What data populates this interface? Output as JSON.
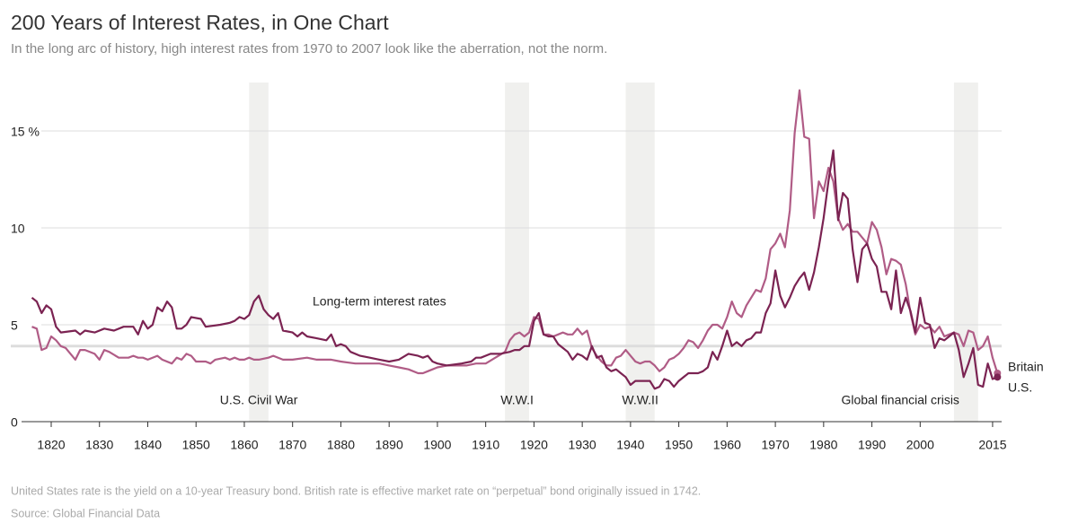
{
  "chart_data": {
    "type": "line",
    "title": "200 Years of Interest Rates, in One Chart",
    "subtitle": "In the long arc of history, high interest rates from 1970 to 2007 look like the aberration, not the norm.",
    "annotation": "Long-term interest rates",
    "notes": [
      "United States rate is the yield on a 10-year Treasury bond. British rate is effective market rate on “perpetual” bond originally issued in 1742.",
      "Source: Global Financial Data"
    ],
    "shaded_periods": [
      {
        "label": "U.S. Civil War",
        "start": 1861,
        "end": 1865
      },
      {
        "label": "W.W.I",
        "start": 1914,
        "end": 1919
      },
      {
        "label": "W.W.II",
        "start": 1939,
        "end": 1945
      },
      {
        "label": "Global financial crisis",
        "start": 2007,
        "end": 2012
      }
    ],
    "reference_line": 3.9,
    "xlim": [
      1812,
      2018
    ],
    "ylim": [
      0,
      17.5
    ],
    "xticks": [
      1820,
      1830,
      1840,
      1850,
      1860,
      1870,
      1880,
      1890,
      1900,
      1910,
      1920,
      1930,
      1940,
      1950,
      1960,
      1970,
      1980,
      1990,
      2000,
      2015
    ],
    "yticks": [
      0,
      5,
      10,
      {
        "value": 15,
        "label": "15 %"
      }
    ],
    "grid": true,
    "series": [
      {
        "name": "Britain",
        "color": "#b05c86",
        "x": [
          1816,
          1817,
          1818,
          1819,
          1820,
          1821,
          1822,
          1823,
          1825,
          1826,
          1827,
          1829,
          1830,
          1831,
          1832,
          1834,
          1836,
          1837,
          1838,
          1839,
          1840,
          1842,
          1843,
          1845,
          1846,
          1847,
          1848,
          1849,
          1850,
          1852,
          1853,
          1854,
          1856,
          1857,
          1858,
          1859,
          1860,
          1861,
          1862,
          1863,
          1865,
          1866,
          1868,
          1870,
          1873,
          1875,
          1878,
          1880,
          1883,
          1886,
          1888,
          1890,
          1892,
          1894,
          1896,
          1897,
          1898,
          1899,
          1900,
          1902,
          1904,
          1906,
          1908,
          1910,
          1912,
          1914,
          1915,
          1916,
          1917,
          1918,
          1919,
          1920,
          1921,
          1922,
          1923,
          1924,
          1925,
          1926,
          1927,
          1928,
          1929,
          1930,
          1931,
          1932,
          1933,
          1934,
          1935,
          1936,
          1937,
          1938,
          1939,
          1940,
          1941,
          1942,
          1943,
          1944,
          1945,
          1946,
          1947,
          1948,
          1949,
          1950,
          1951,
          1952,
          1953,
          1954,
          1955,
          1956,
          1957,
          1958,
          1959,
          1960,
          1961,
          1962,
          1963,
          1964,
          1965,
          1966,
          1967,
          1968,
          1969,
          1970,
          1971,
          1972,
          1973,
          1974,
          1975,
          1976,
          1977,
          1978,
          1979,
          1980,
          1981,
          1982,
          1983,
          1984,
          1985,
          1986,
          1987,
          1988,
          1989,
          1990,
          1991,
          1992,
          1993,
          1994,
          1995,
          1996,
          1997,
          1998,
          1999,
          2000,
          2001,
          2002,
          2003,
          2004,
          2005,
          2006,
          2007,
          2008,
          2009,
          2010,
          2011,
          2012,
          2013,
          2014,
          2015,
          2016
        ],
        "values": [
          4.9,
          4.8,
          3.7,
          3.8,
          4.4,
          4.2,
          3.9,
          3.8,
          3.2,
          3.7,
          3.7,
          3.5,
          3.2,
          3.7,
          3.6,
          3.3,
          3.3,
          3.4,
          3.3,
          3.3,
          3.2,
          3.4,
          3.2,
          3.0,
          3.3,
          3.2,
          3.5,
          3.4,
          3.1,
          3.1,
          3.0,
          3.2,
          3.3,
          3.2,
          3.3,
          3.2,
          3.2,
          3.3,
          3.2,
          3.2,
          3.3,
          3.4,
          3.2,
          3.2,
          3.3,
          3.2,
          3.2,
          3.1,
          3.0,
          3.0,
          3.0,
          2.9,
          2.8,
          2.7,
          2.5,
          2.5,
          2.6,
          2.7,
          2.8,
          2.9,
          2.9,
          2.9,
          3.0,
          3.0,
          3.3,
          3.6,
          4.2,
          4.5,
          4.6,
          4.4,
          4.6,
          5.4,
          5.3,
          4.5,
          4.5,
          4.4,
          4.5,
          4.6,
          4.5,
          4.5,
          4.8,
          4.5,
          4.7,
          3.8,
          3.4,
          3.1,
          2.9,
          2.9,
          3.3,
          3.4,
          3.7,
          3.4,
          3.1,
          3.0,
          3.1,
          3.1,
          2.9,
          2.6,
          2.8,
          3.2,
          3.3,
          3.5,
          3.8,
          4.2,
          4.1,
          3.8,
          4.2,
          4.7,
          5.0,
          5.0,
          4.8,
          5.4,
          6.2,
          5.6,
          5.4,
          6.0,
          6.4,
          6.8,
          6.7,
          7.4,
          8.9,
          9.2,
          9.7,
          9.0,
          10.9,
          14.9,
          17.1,
          14.7,
          14.6,
          10.5,
          12.4,
          11.9,
          13.1,
          12.4,
          10.5,
          9.9,
          10.2,
          9.8,
          9.8,
          9.5,
          9.2,
          10.3,
          9.9,
          9.0,
          7.6,
          8.4,
          8.3,
          8.1,
          7.1,
          5.6,
          4.5,
          5.0,
          4.8,
          4.9,
          4.6,
          4.9,
          4.4,
          4.5,
          4.6,
          4.5,
          3.9,
          4.7,
          4.6,
          3.7,
          3.9,
          4.4,
          3.3,
          2.5
        ]
      },
      {
        "name": "U.S.",
        "color": "#7b2352",
        "x": [
          1816,
          1817,
          1818,
          1819,
          1820,
          1821,
          1822,
          1825,
          1826,
          1827,
          1829,
          1831,
          1833,
          1835,
          1837,
          1838,
          1839,
          1840,
          1841,
          1842,
          1843,
          1844,
          1845,
          1846,
          1847,
          1848,
          1849,
          1851,
          1852,
          1855,
          1857,
          1858,
          1859,
          1860,
          1861,
          1862,
          1863,
          1864,
          1865,
          1866,
          1867,
          1868,
          1870,
          1871,
          1872,
          1873,
          1875,
          1877,
          1878,
          1879,
          1880,
          1881,
          1882,
          1884,
          1886,
          1888,
          1890,
          1892,
          1894,
          1896,
          1897,
          1898,
          1899,
          1900,
          1902,
          1905,
          1907,
          1908,
          1909,
          1911,
          1913,
          1915,
          1916,
          1917,
          1918,
          1919,
          1920,
          1921,
          1922,
          1923,
          1924,
          1925,
          1926,
          1927,
          1928,
          1929,
          1930,
          1931,
          1932,
          1933,
          1934,
          1935,
          1936,
          1937,
          1938,
          1939,
          1940,
          1941,
          1942,
          1944,
          1945,
          1946,
          1947,
          1948,
          1949,
          1950,
          1952,
          1953,
          1954,
          1955,
          1956,
          1957,
          1958,
          1959,
          1960,
          1961,
          1962,
          1963,
          1964,
          1965,
          1966,
          1967,
          1968,
          1969,
          1970,
          1971,
          1972,
          1973,
          1974,
          1975,
          1976,
          1977,
          1978,
          1979,
          1980,
          1981,
          1982,
          1983,
          1984,
          1985,
          1986,
          1987,
          1988,
          1989,
          1990,
          1991,
          1992,
          1993,
          1994,
          1995,
          1996,
          1997,
          1998,
          1999,
          2000,
          2001,
          2002,
          2003,
          2004,
          2005,
          2006,
          2007,
          2008,
          2009,
          2010,
          2011,
          2012,
          2013,
          2014,
          2015,
          2016
        ],
        "values": [
          6.4,
          6.2,
          5.6,
          6.0,
          5.8,
          4.9,
          4.6,
          4.7,
          4.5,
          4.7,
          4.6,
          4.8,
          4.7,
          4.9,
          4.9,
          4.5,
          5.2,
          4.8,
          5.0,
          5.9,
          5.7,
          6.2,
          5.9,
          4.8,
          4.8,
          5.0,
          5.4,
          5.3,
          4.9,
          5.0,
          5.1,
          5.2,
          5.4,
          5.3,
          5.5,
          6.2,
          6.5,
          5.8,
          5.5,
          5.3,
          5.6,
          4.7,
          4.6,
          4.4,
          4.6,
          4.4,
          4.3,
          4.2,
          4.5,
          3.9,
          4.0,
          3.9,
          3.6,
          3.4,
          3.3,
          3.2,
          3.1,
          3.2,
          3.5,
          3.4,
          3.3,
          3.4,
          3.1,
          3.0,
          2.9,
          3.0,
          3.1,
          3.3,
          3.3,
          3.5,
          3.5,
          3.6,
          3.7,
          3.7,
          3.9,
          3.9,
          5.2,
          5.6,
          4.5,
          4.4,
          4.4,
          4.0,
          3.8,
          3.6,
          3.2,
          3.5,
          3.4,
          3.2,
          3.9,
          3.3,
          3.4,
          2.8,
          2.6,
          2.7,
          2.5,
          2.3,
          1.9,
          2.1,
          2.1,
          2.1,
          1.7,
          1.8,
          2.2,
          2.1,
          1.8,
          2.1,
          2.5,
          2.5,
          2.5,
          2.6,
          2.8,
          3.6,
          3.2,
          3.9,
          4.7,
          3.9,
          4.1,
          3.9,
          4.2,
          4.3,
          4.6,
          4.6,
          5.6,
          6.1,
          7.8,
          6.5,
          5.9,
          6.4,
          7.0,
          7.4,
          7.7,
          6.8,
          7.7,
          9.0,
          10.5,
          12.4,
          14.0,
          10.4,
          11.8,
          11.5,
          8.9,
          7.2,
          8.9,
          9.2,
          8.4,
          8.0,
          6.7,
          6.7,
          5.8,
          7.8,
          5.6,
          6.4,
          5.7,
          4.6,
          6.4,
          5.1,
          5.0,
          3.8,
          4.3,
          4.2,
          4.4,
          4.6,
          3.7,
          2.3,
          3.0,
          3.8,
          1.9,
          1.8,
          3.0,
          2.2,
          2.3
        ]
      }
    ]
  }
}
